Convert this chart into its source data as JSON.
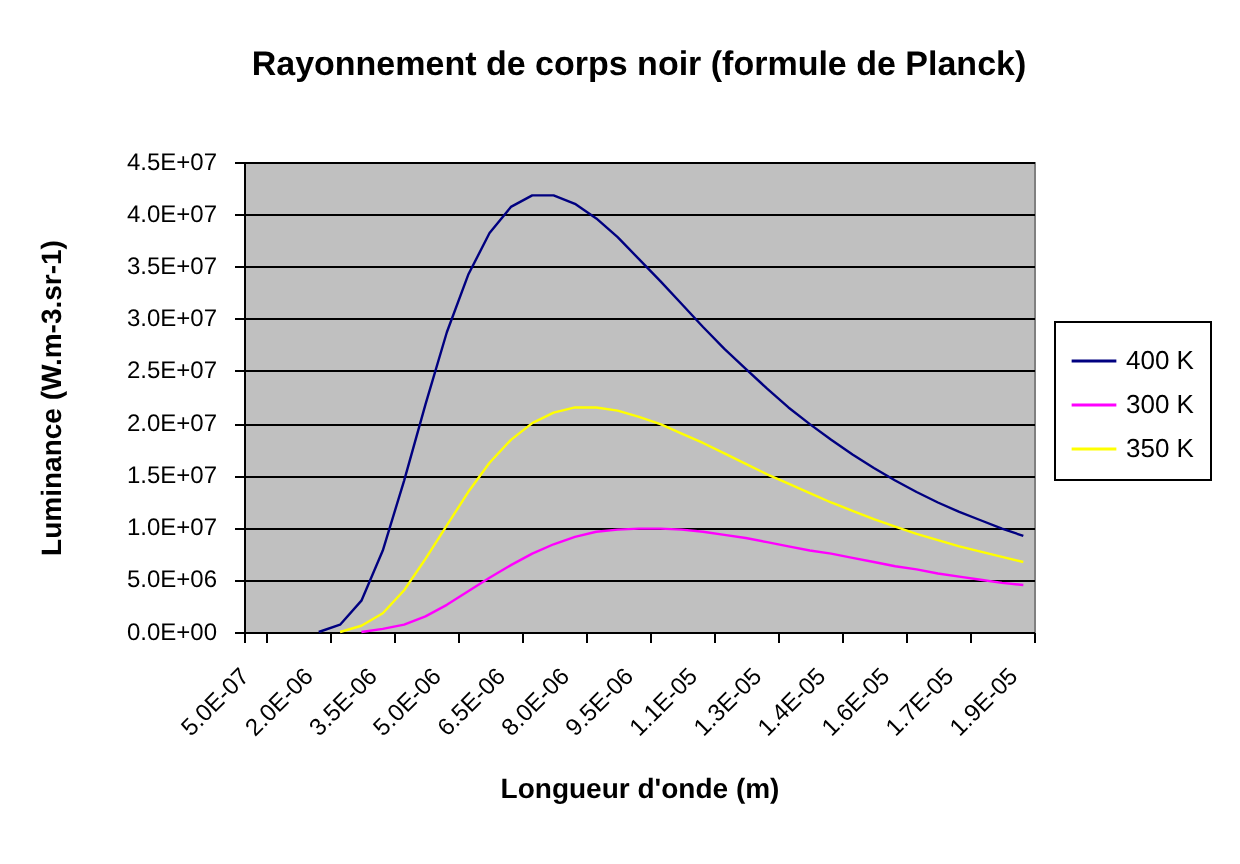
{
  "chart_data": {
    "type": "line",
    "title": "Rayonnement de corps noir (formule de Planck)",
    "xlabel": "Longueur d'onde (m)",
    "ylabel": "Luminance (W.m-3.sr-1)",
    "categories": [
      "5.0E-07",
      null,
      null,
      "2.0E-06",
      null,
      null,
      "3.5E-06",
      null,
      null,
      "5.0E-06",
      null,
      null,
      "6.5E-06",
      null,
      null,
      "8.0E-06",
      null,
      null,
      "9.5E-06",
      null,
      null,
      "1.1E-05",
      null,
      null,
      "1.3E-05",
      null,
      null,
      "1.4E-05",
      null,
      null,
      "1.6E-05",
      null,
      null,
      "1.7E-05",
      null,
      null,
      "1.9E-05"
    ],
    "series": [
      {
        "name": "400 K",
        "color": "#000080",
        "values": [
          null,
          null,
          null,
          0,
          700000,
          3000000,
          7800000,
          14500000,
          21800000,
          28700000,
          34200000,
          38200000,
          40700000,
          41800000,
          41800000,
          41000000,
          39600000,
          37800000,
          35700000,
          33600000,
          31400000,
          29200000,
          27100000,
          25200000,
          23300000,
          21500000,
          19900000,
          18400000,
          17000000,
          15700000,
          14500000,
          13400000,
          12400000,
          11500000,
          10700000,
          9900000,
          9200000
        ]
      },
      {
        "name": "300 K",
        "color": "#ff00ff",
        "values": [
          null,
          null,
          null,
          null,
          null,
          0,
          300000,
          700000,
          1500000,
          2600000,
          3900000,
          5200000,
          6400000,
          7500000,
          8400000,
          9100000,
          9600000,
          9800000,
          9900000,
          9900000,
          9800000,
          9600000,
          9300000,
          9000000,
          8600000,
          8200000,
          7800000,
          7500000,
          7100000,
          6700000,
          6300000,
          6000000,
          5600000,
          5300000,
          5000000,
          4700000,
          4500000
        ]
      },
      {
        "name": "350 K",
        "color": "#ffff00",
        "values": [
          null,
          null,
          null,
          null,
          0,
          600000,
          1800000,
          4000000,
          7000000,
          10200000,
          13400000,
          16200000,
          18400000,
          20000000,
          21000000,
          21500000,
          21500000,
          21200000,
          20600000,
          19900000,
          19000000,
          18100000,
          17100000,
          16100000,
          15100000,
          14200000,
          13300000,
          12400000,
          11600000,
          10800000,
          10100000,
          9400000,
          8800000,
          8200000,
          7700000,
          7200000,
          6700000
        ]
      }
    ],
    "ylim": [
      0,
      45000000
    ],
    "yticks": [
      {
        "value": 0,
        "label": "0.0E+00"
      },
      {
        "value": 5000000,
        "label": "5.0E+06"
      },
      {
        "value": 10000000,
        "label": "1.0E+07"
      },
      {
        "value": 15000000,
        "label": "1.5E+07"
      },
      {
        "value": 20000000,
        "label": "2.0E+07"
      },
      {
        "value": 25000000,
        "label": "2.5E+07"
      },
      {
        "value": 30000000,
        "label": "3.0E+07"
      },
      {
        "value": 35000000,
        "label": "3.5E+07"
      },
      {
        "value": 40000000,
        "label": "4.0E+07"
      },
      {
        "value": 45000000,
        "label": "4.5E+07"
      }
    ],
    "grid": "y",
    "legend": "right"
  }
}
